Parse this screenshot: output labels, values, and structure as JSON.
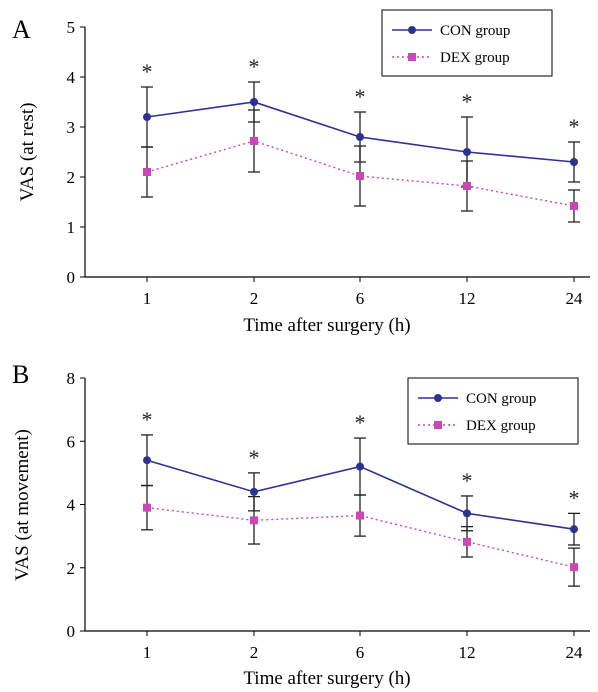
{
  "chart_data": [
    {
      "type": "line",
      "panel_label": "A",
      "categories": [
        "1",
        "2",
        "6",
        "12",
        "24"
      ],
      "xlabel": "Time after surgery (h)",
      "ylabel": "VAS (at rest)",
      "ylim": [
        0,
        5
      ],
      "yticks": [
        "0",
        "1",
        "2",
        "3",
        "4",
        "5"
      ],
      "legend_position": "top-right",
      "significance_marker": "*",
      "significance": [
        true,
        true,
        true,
        true,
        true
      ],
      "series": [
        {
          "name": "CON group",
          "color": "#2e3192",
          "style": "solid",
          "marker": "circle",
          "values": [
            3.2,
            3.5,
            2.8,
            2.5,
            2.3
          ],
          "errors": [
            0.6,
            0.4,
            0.5,
            0.7,
            0.4
          ]
        },
        {
          "name": "DEX group",
          "color": "#cc46b8",
          "style": "dotted",
          "marker": "square",
          "values": [
            2.1,
            2.72,
            2.02,
            1.82,
            1.42
          ],
          "errors": [
            0.5,
            0.62,
            0.6,
            0.5,
            0.32
          ]
        }
      ]
    },
    {
      "type": "line",
      "panel_label": "B",
      "categories": [
        "1",
        "2",
        "6",
        "12",
        "24"
      ],
      "xlabel": "Time after surgery (h)",
      "ylabel": "VAS (at movement)",
      "ylim": [
        0,
        8
      ],
      "yticks": [
        "0",
        "2",
        "4",
        "6",
        "8"
      ],
      "legend_position": "top-right",
      "significance_marker": "*",
      "significance": [
        true,
        true,
        true,
        true,
        true
      ],
      "series": [
        {
          "name": "CON group",
          "color": "#2e3192",
          "style": "solid",
          "marker": "circle",
          "values": [
            5.4,
            4.4,
            5.2,
            3.72,
            3.22
          ],
          "errors": [
            0.8,
            0.6,
            0.9,
            0.55,
            0.5
          ]
        },
        {
          "name": "DEX group",
          "color": "#cc46b8",
          "style": "dotted",
          "marker": "square",
          "values": [
            3.9,
            3.5,
            3.65,
            2.82,
            2.02
          ],
          "errors": [
            0.7,
            0.75,
            0.65,
            0.48,
            0.6
          ]
        }
      ]
    }
  ]
}
